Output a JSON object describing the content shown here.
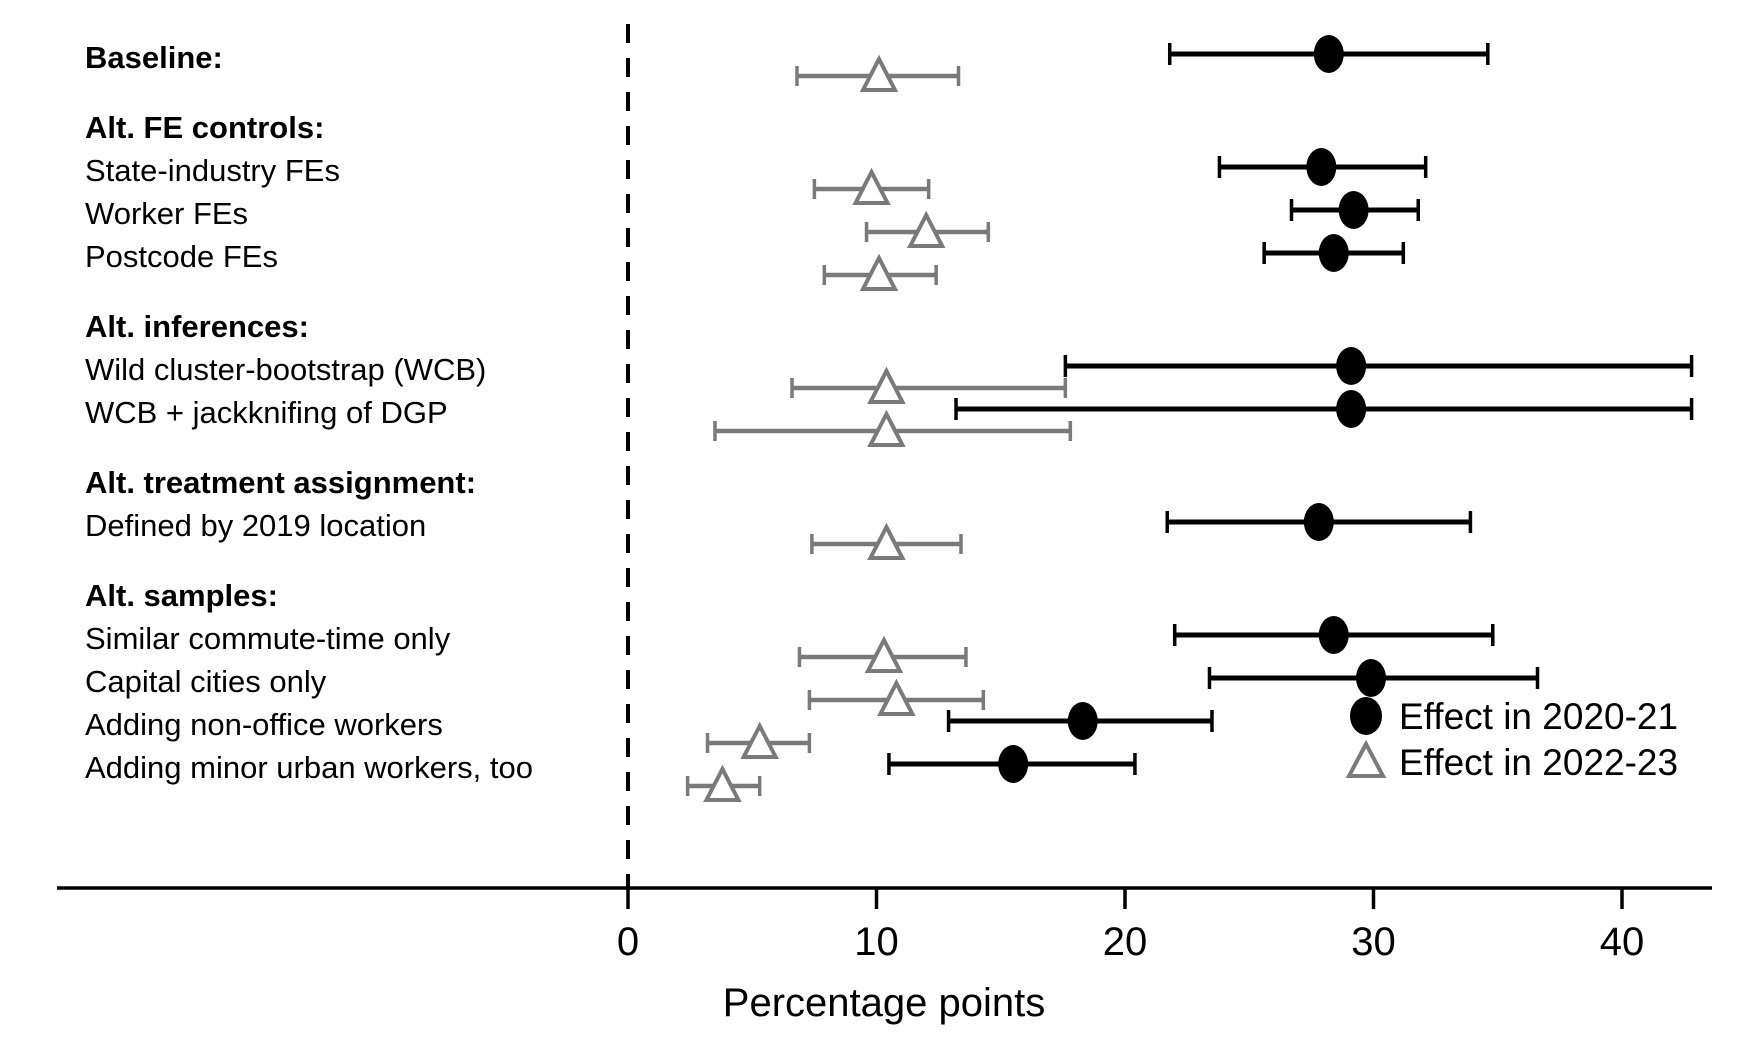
{
  "chart_data": {
    "type": "scatter",
    "variant": "forest-dot-interval",
    "title": "",
    "xlabel": "Percentage points",
    "ylabel": "",
    "x_ticks": [
      0,
      10,
      20,
      30,
      40
    ],
    "xlim": [
      -23,
      44.5
    ],
    "zero_reference_line": 0,
    "grid": false,
    "legend_position": "bottom-right-inside",
    "colors": {
      "series_2020_21": "#000000",
      "series_2022_23": "#7a7a7a",
      "axis": "#000000"
    },
    "legend": [
      {
        "label": "Effect in 2020-21",
        "marker": "filled-circle",
        "color": "#000000"
      },
      {
        "label": "Effect in 2022-23",
        "marker": "open-triangle",
        "color": "#7a7a7a"
      }
    ],
    "rows": [
      {
        "label": "Baseline:",
        "header": true,
        "effect_2020_21": {
          "est": 28.2,
          "ci_low": 21.8,
          "ci_high": 34.6
        },
        "effect_2022_23": {
          "est": 10.1,
          "ci_low": 6.8,
          "ci_high": 13.3
        }
      },
      {
        "label": "Alt. FE controls:",
        "header": true
      },
      {
        "label": "State-industry FEs",
        "header": false,
        "effect_2020_21": {
          "est": 27.9,
          "ci_low": 23.8,
          "ci_high": 32.1
        },
        "effect_2022_23": {
          "est": 9.8,
          "ci_low": 7.5,
          "ci_high": 12.1
        }
      },
      {
        "label": "Worker FEs",
        "header": false,
        "effect_2020_21": {
          "est": 29.2,
          "ci_low": 26.7,
          "ci_high": 31.8
        },
        "effect_2022_23": {
          "est": 12.0,
          "ci_low": 9.6,
          "ci_high": 14.5
        }
      },
      {
        "label": "Postcode FEs",
        "header": false,
        "effect_2020_21": {
          "est": 28.4,
          "ci_low": 25.6,
          "ci_high": 31.2
        },
        "effect_2022_23": {
          "est": 10.1,
          "ci_low": 7.9,
          "ci_high": 12.4
        }
      },
      {
        "label": "Alt. inferences:",
        "header": true
      },
      {
        "label": "Wild cluster-bootstrap (WCB)",
        "header": false,
        "effect_2020_21": {
          "est": 29.1,
          "ci_low": 17.6,
          "ci_high": 42.8
        },
        "effect_2022_23": {
          "est": 10.4,
          "ci_low": 6.6,
          "ci_high": 17.6
        }
      },
      {
        "label": "WCB + jackknifing of DGP",
        "header": false,
        "effect_2020_21": {
          "est": 29.1,
          "ci_low": 13.2,
          "ci_high": 42.8
        },
        "effect_2022_23": {
          "est": 10.4,
          "ci_low": 3.5,
          "ci_high": 17.8
        }
      },
      {
        "label": "Alt. treatment assignment:",
        "header": true
      },
      {
        "label": "Defined by 2019 location",
        "header": false,
        "effect_2020_21": {
          "est": 27.8,
          "ci_low": 21.7,
          "ci_high": 33.9
        },
        "effect_2022_23": {
          "est": 10.4,
          "ci_low": 7.4,
          "ci_high": 13.4
        }
      },
      {
        "label": "Alt. samples:",
        "header": true
      },
      {
        "label": "Similar commute-time only",
        "header": false,
        "effect_2020_21": {
          "est": 28.4,
          "ci_low": 22.0,
          "ci_high": 34.8
        },
        "effect_2022_23": {
          "est": 10.3,
          "ci_low": 6.9,
          "ci_high": 13.6
        }
      },
      {
        "label": "Capital cities only",
        "header": false,
        "effect_2020_21": {
          "est": 29.9,
          "ci_low": 23.4,
          "ci_high": 36.6
        },
        "effect_2022_23": {
          "est": 10.8,
          "ci_low": 7.3,
          "ci_high": 14.3
        }
      },
      {
        "label": "Adding non-office workers",
        "header": false,
        "effect_2020_21": {
          "est": 18.3,
          "ci_low": 12.9,
          "ci_high": 23.5
        },
        "effect_2022_23": {
          "est": 5.3,
          "ci_low": 3.2,
          "ci_high": 7.3
        }
      },
      {
        "label": "Adding minor urban workers, too",
        "header": false,
        "effect_2020_21": {
          "est": 15.5,
          "ci_low": 10.5,
          "ci_high": 20.4
        },
        "effect_2022_23": {
          "est": 3.8,
          "ci_low": 2.4,
          "ci_high": 5.3
        }
      }
    ]
  }
}
